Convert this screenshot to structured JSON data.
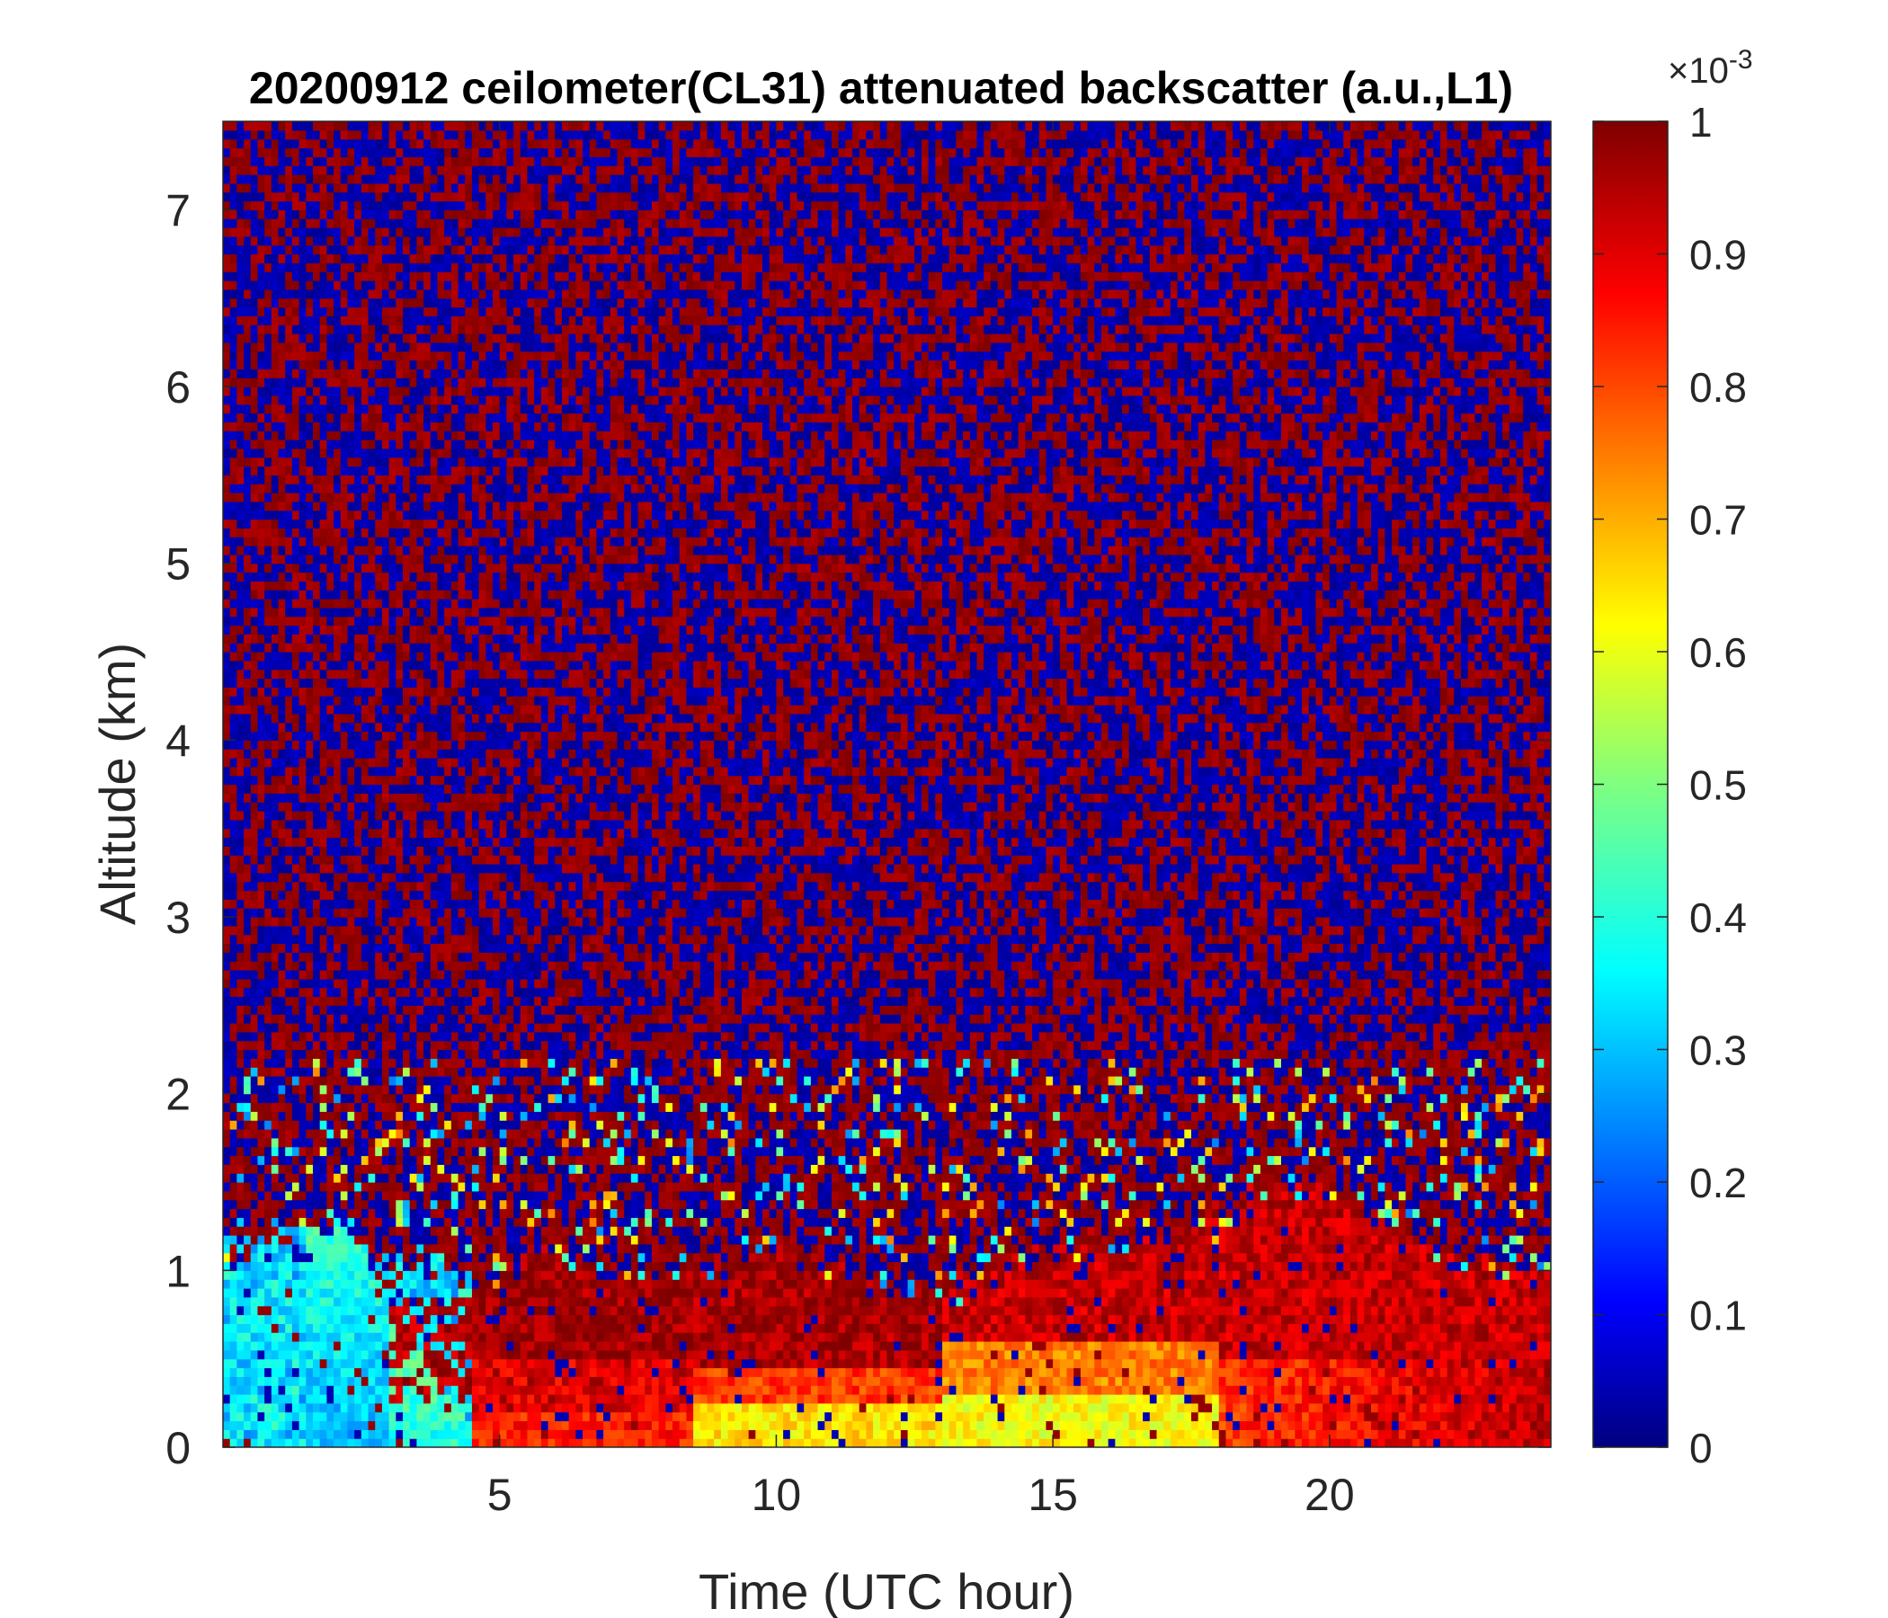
{
  "chart_data": {
    "type": "heatmap",
    "title": "20200912 ceilometer(CL31) attenuated backscatter (a.u.,L1)",
    "xlabel": "Time (UTC hour)",
    "ylabel": "Altitude (km)",
    "xlim": [
      0,
      24
    ],
    "ylim": [
      0,
      7.5
    ],
    "xticks": [
      5,
      10,
      15,
      20
    ],
    "yticks": [
      0,
      1,
      2,
      3,
      4,
      5,
      6,
      7
    ],
    "colormap": "jet",
    "colorbar": {
      "label": "",
      "range": [
        0,
        1
      ],
      "ticks": [
        0,
        0.1,
        0.2,
        0.3,
        0.4,
        0.5,
        0.6,
        0.7,
        0.8,
        0.9,
        1
      ],
      "tick_labels": [
        "0",
        "0.1",
        "0.2",
        "0.3",
        "0.4",
        "0.5",
        "0.6",
        "0.7",
        "0.8",
        "0.9",
        "1"
      ],
      "exponent_label": "×10",
      "exponent_power": "-3"
    },
    "features": {
      "boundary_layer_top_km": [
        {
          "hour": 0,
          "height": 1.1
        },
        {
          "hour": 1,
          "height": 1.2
        },
        {
          "hour": 2,
          "height": 1.25
        },
        {
          "hour": 3,
          "height": 1.0
        },
        {
          "hour": 4,
          "height": 1.05
        },
        {
          "hour": 5,
          "height": 0.95
        },
        {
          "hour": 6,
          "height": 1.15
        },
        {
          "hour": 7,
          "height": 0.9
        },
        {
          "hour": 8,
          "height": 0.95
        },
        {
          "hour": 9,
          "height": 1.05
        },
        {
          "hour": 10,
          "height": 1.1
        },
        {
          "hour": 11,
          "height": 1.0
        },
        {
          "hour": 12,
          "height": 0.75
        },
        {
          "hour": 13,
          "height": 0.85
        },
        {
          "hour": 14,
          "height": 1.0
        },
        {
          "hour": 15,
          "height": 1.1
        },
        {
          "hour": 16,
          "height": 1.15
        },
        {
          "hour": 17,
          "height": 1.2
        },
        {
          "hour": 18,
          "height": 1.3
        },
        {
          "hour": 19,
          "height": 1.45
        },
        {
          "hour": 20,
          "height": 1.4
        },
        {
          "hour": 21,
          "height": 1.3
        },
        {
          "hour": 22,
          "height": 1.1
        },
        {
          "hour": 23,
          "height": 1.0
        },
        {
          "hour": 24,
          "height": 0.95
        }
      ],
      "noise_background": "random 0 / 1 alternation above boundary layer"
    }
  }
}
